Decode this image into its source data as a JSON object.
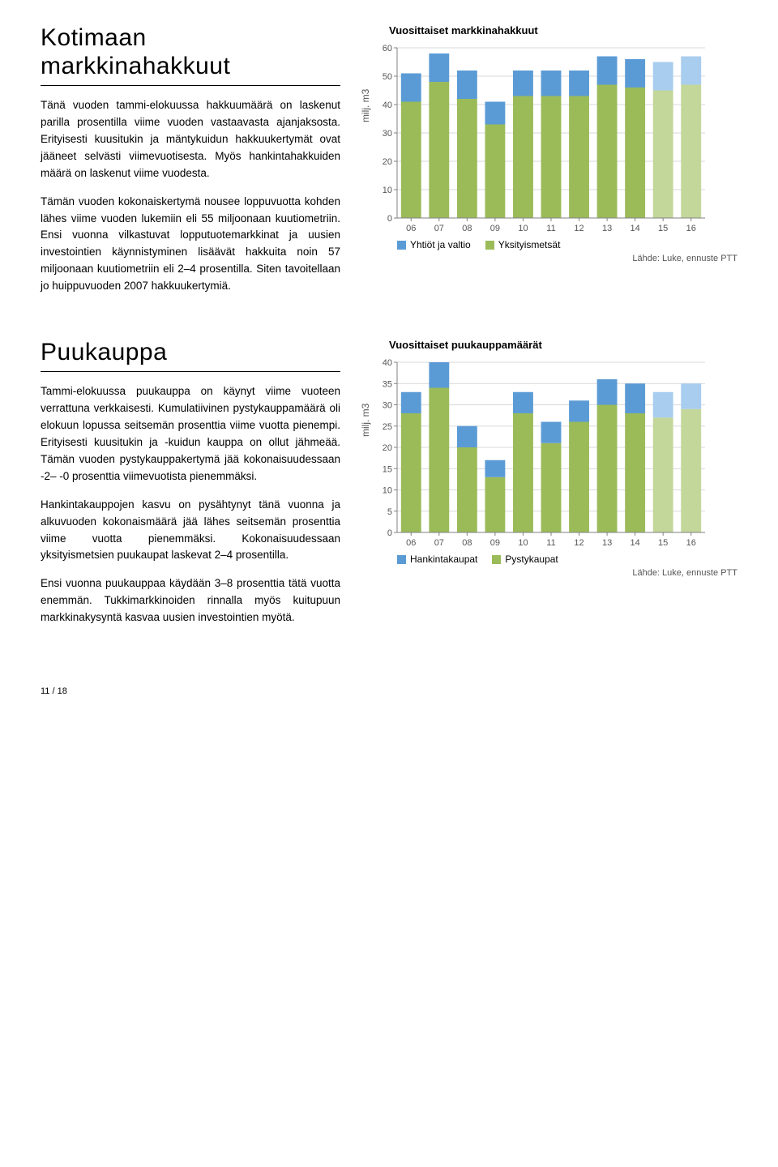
{
  "section1": {
    "heading": "Kotimaan markkinahakkuut",
    "paragraphs": [
      "Tänä vuoden tammi-elokuussa hakkuumäärä on laskenut parilla prosentilla viime vuoden vastaavasta ajanjaksosta. Erityisesti kuusitukin ja mäntykuidun hakkuukertymät ovat jääneet selvästi viimevuotisesta. Myös hankintahakkuiden määrä on laskenut viime vuodesta.",
      "Tämän vuoden kokonaiskertymä nousee loppuvuotta kohden lähes viime vuoden lukemiin eli 55 miljoonaan kuutiometriin. Ensi vuonna vilkastuvat lopputuotemarkkinat ja uusien investointien käynnistyminen lisäävät hakkuita noin 57 miljoonaan kuutiometriin eli 2–4 prosentilla. Siten tavoitellaan jo huippuvuoden 2007 hakkuukertymiä."
    ],
    "chart": {
      "type": "stacked-bar",
      "title": "Vuosittaiset markkinahakkuut",
      "ylabel": "milj. m3",
      "ylim": [
        0,
        60
      ],
      "ytick_step": 10,
      "categories": [
        "06",
        "07",
        "08",
        "09",
        "10",
        "11",
        "12",
        "13",
        "14",
        "15",
        "16"
      ],
      "series": [
        {
          "name": "Yhtiöt ja valtio",
          "color": "#5b9bd5",
          "values": [
            10,
            10,
            10,
            8,
            9,
            9,
            9,
            10,
            10,
            10,
            10
          ]
        },
        {
          "name": "Yksityismetsät",
          "color": "#9bbb59",
          "values": [
            41,
            48,
            42,
            33,
            43,
            43,
            43,
            47,
            46,
            45,
            47
          ]
        }
      ],
      "forecast_from_index": 9,
      "forecast_lighten": {
        "top": "#a8cdee",
        "bottom": "#c3d79b"
      },
      "bar_width": 0.72,
      "background": "#ffffff",
      "grid_color": "#d9d9d9",
      "axis_color": "#808080",
      "tick_font_size": 11,
      "source": "Lähde: Luke, ennuste PTT",
      "legend_labels": [
        "Yhtiöt ja valtio",
        "Yksityismetsät"
      ]
    }
  },
  "section2": {
    "heading": "Puukauppa",
    "paragraphs": [
      "Tammi-elokuussa puukauppa on käynyt viime vuoteen verrattuna verkkaisesti. Kumulatiivinen pystykauppamäärä oli elokuun lopussa seitsemän prosenttia viime vuotta pienempi. Erityisesti kuusitukin ja -kuidun kauppa on ollut jähmeää. Tämän vuoden pystykauppakertymä jää kokonaisuudessaan -2– -0 prosenttia viimevuotista pienemmäksi.",
      "Hankintakauppojen kasvu on pysähtynyt tänä vuonna ja alkuvuoden kokonaismäärä jää lähes seitsemän prosenttia viime vuotta pienemmäksi. Kokonaisuudessaan yksityismetsien puukaupat laskevat 2–4 prosentilla.",
      "Ensi vuonna puukauppaa käydään 3–8 prosenttia tätä vuotta enemmän. Tukkimarkkinoiden rinnalla myös kuitupuun markkinakysyntä kasvaa uusien investointien myötä."
    ],
    "chart": {
      "type": "stacked-bar",
      "title": "Vuosittaiset puukauppamäärät",
      "ylabel": "milj. m3",
      "ylim": [
        0,
        40
      ],
      "ytick_step": 5,
      "categories": [
        "06",
        "07",
        "08",
        "09",
        "10",
        "11",
        "12",
        "13",
        "14",
        "15",
        "16"
      ],
      "series": [
        {
          "name": "Hankintakaupat",
          "color": "#5b9bd5",
          "values": [
            5,
            6,
            5,
            4,
            5,
            5,
            5,
            6,
            7,
            6,
            6
          ]
        },
        {
          "name": "Pystykaupat",
          "color": "#9bbb59",
          "values": [
            28,
            34,
            20,
            13,
            28,
            21,
            26,
            30,
            28,
            27,
            29
          ]
        }
      ],
      "forecast_from_index": 9,
      "forecast_lighten": {
        "top": "#a8cdee",
        "bottom": "#c3d79b"
      },
      "bar_width": 0.72,
      "background": "#ffffff",
      "grid_color": "#d9d9d9",
      "axis_color": "#808080",
      "tick_font_size": 11,
      "source": "Lähde: Luke, ennuste PTT",
      "legend_labels": [
        "Hankintakaupat",
        "Pystykaupat"
      ]
    }
  },
  "page_number": "11 / 18"
}
